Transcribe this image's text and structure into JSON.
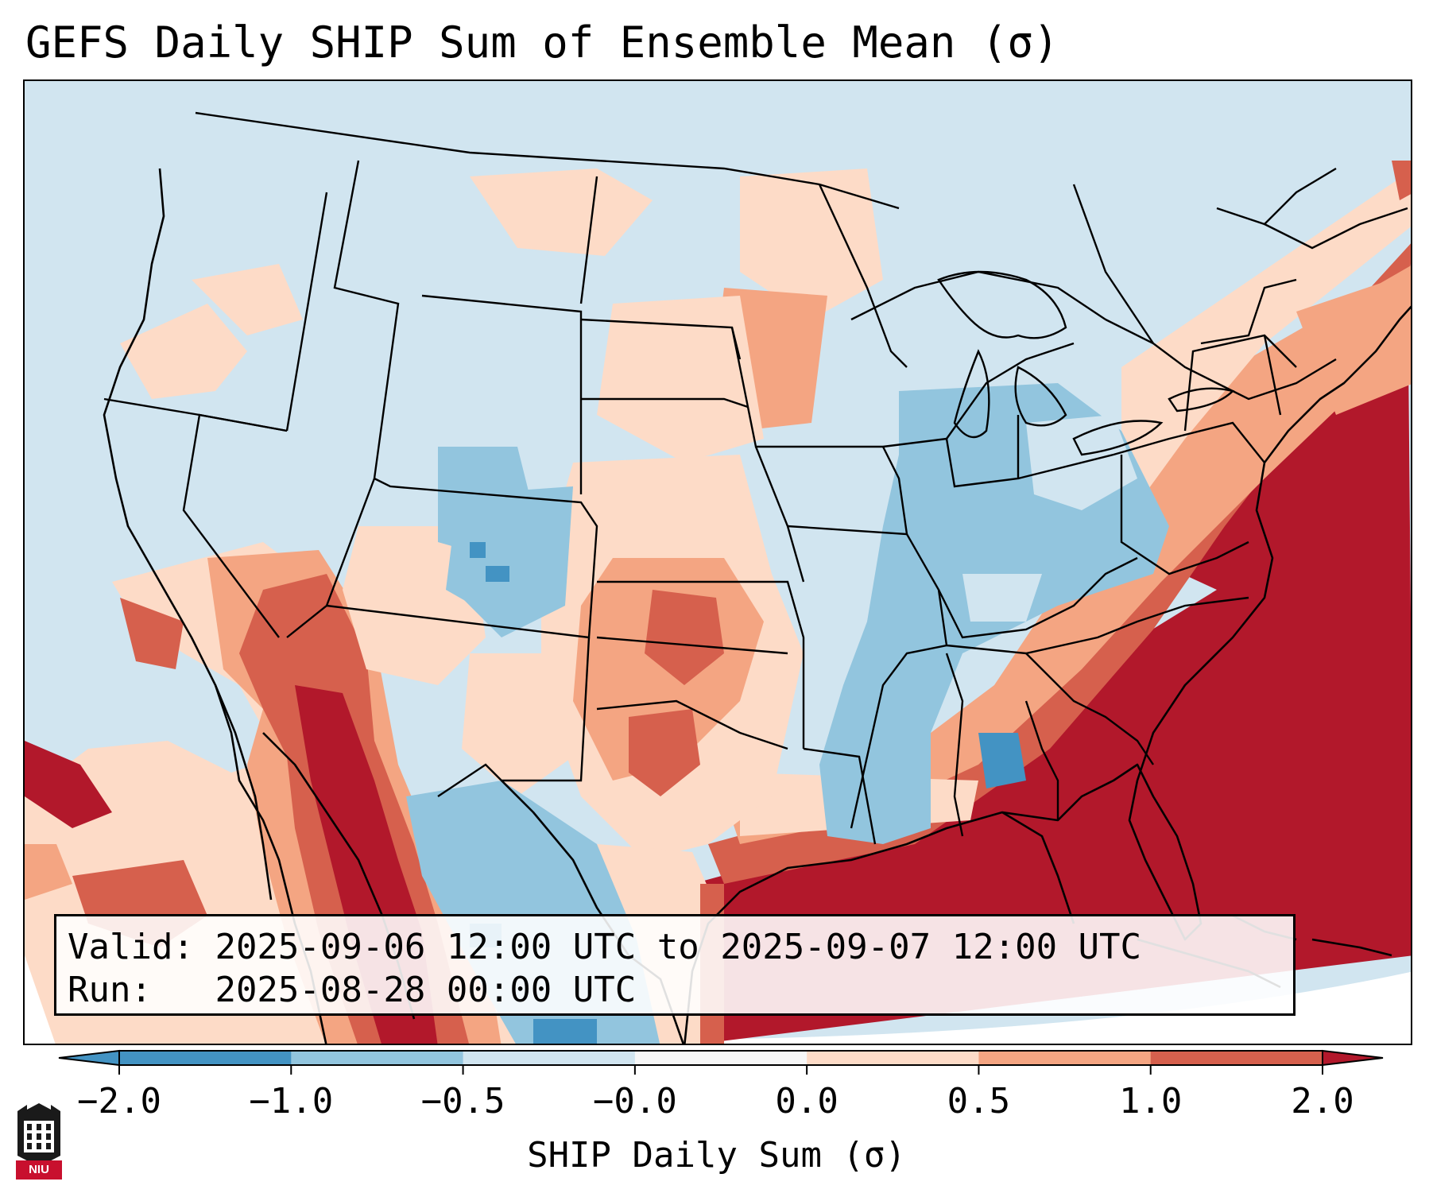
{
  "title": "GEFS Daily SHIP Sum of Ensemble Mean (σ)",
  "info": {
    "valid_label": "Valid:",
    "valid_value": "2025-09-06 12:00 UTC to 2025-09-07 12:00 UTC",
    "run_label": "Run:",
    "run_value": "2025-08-28 00:00 UTC"
  },
  "colorbar": {
    "label": "SHIP Daily Sum (σ)",
    "ticks": [
      "−2.0",
      "−1.0",
      "−0.5",
      "−0.0",
      "0.0",
      "0.5",
      "1.0",
      "2.0"
    ],
    "colors": [
      "#4393c3",
      "#92c5de",
      "#d1e5f0",
      "#f7f7f7",
      "#fddbc7",
      "#f4a582",
      "#d6604d",
      "#b2182b"
    ]
  },
  "logo": {
    "text": "NIU"
  },
  "colors": {
    "ocean_field": "#d1e5f0",
    "coast_lines": "#000000"
  }
}
